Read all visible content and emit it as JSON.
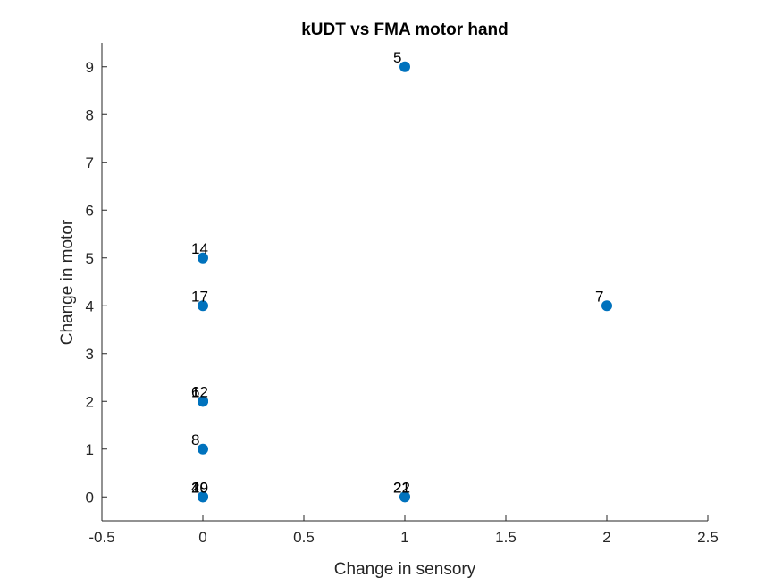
{
  "chart_data": {
    "type": "scatter",
    "title": "kUDT vs FMA motor hand",
    "xlabel": "Change in sensory",
    "ylabel": "Change in motor",
    "xlim": [
      -0.5,
      2.5
    ],
    "ylim": [
      -0.5,
      9.5
    ],
    "xticks": [
      -0.5,
      0,
      0.5,
      1,
      1.5,
      2,
      2.5
    ],
    "yticks": [
      0,
      1,
      2,
      3,
      4,
      5,
      6,
      7,
      8,
      9
    ],
    "xtick_labels": [
      "-0.5",
      "0",
      "0.5",
      "1",
      "1.5",
      "2",
      "2.5"
    ],
    "ytick_labels": [
      "0",
      "1",
      "2",
      "3",
      "4",
      "5",
      "6",
      "7",
      "8",
      "9"
    ],
    "grid": false,
    "marker_color": "#0072BD",
    "points": [
      {
        "x": 1,
        "y": 9,
        "label": "5"
      },
      {
        "x": 0,
        "y": 5,
        "label": "14"
      },
      {
        "x": 0,
        "y": 4,
        "label": "17"
      },
      {
        "x": 2,
        "y": 4,
        "label": "7"
      },
      {
        "x": 0,
        "y": 2,
        "label": "1"
      },
      {
        "x": 0,
        "y": 2,
        "label": "12"
      },
      {
        "x": 0,
        "y": 2,
        "label": "6"
      },
      {
        "x": 0,
        "y": 1,
        "label": "8"
      },
      {
        "x": 0,
        "y": 0,
        "label": "20"
      },
      {
        "x": 0,
        "y": 0,
        "label": "19"
      },
      {
        "x": 0,
        "y": 0,
        "label": "4"
      },
      {
        "x": 1,
        "y": 0,
        "label": "21"
      },
      {
        "x": 1,
        "y": 0,
        "label": "22"
      }
    ]
  }
}
